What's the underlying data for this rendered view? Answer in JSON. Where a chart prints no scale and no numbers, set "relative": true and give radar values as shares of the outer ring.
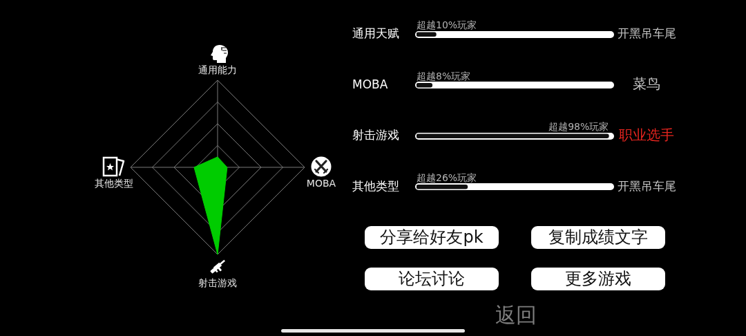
{
  "chart_data": [
    {
      "type": "radar",
      "categories": [
        "通用能力",
        "MOBA",
        "射击游戏",
        "其他类型"
      ],
      "series": [
        {
          "color": "#00cc00",
          "values": [
            0.12,
            0.11,
            1,
            0.27
          ]
        }
      ],
      "relative": true,
      "grid": true
    },
    {
      "type": "bar",
      "orientation": "horizontal",
      "categories": [
        "通用天赋",
        "MOBA",
        "射击游戏",
        "其他类型"
      ],
      "values": [
        10,
        8,
        98,
        26
      ],
      "color": "#111111",
      "value_labels": [
        "超越10%玩家",
        "超越8%玩家",
        "超越98%玩家",
        "超越26%玩家"
      ],
      "tick_labels": "y",
      "annotations": [
        "开黑吊车尾",
        "菜鸟",
        "职业选手",
        "开黑吊车尾"
      ]
    },
    {
      "type": "other",
      "annotations": [
        "分享给好友pk",
        "复制成绩文字",
        "论坛讨论",
        "更多游戏",
        "返回"
      ]
    }
  ]
}
